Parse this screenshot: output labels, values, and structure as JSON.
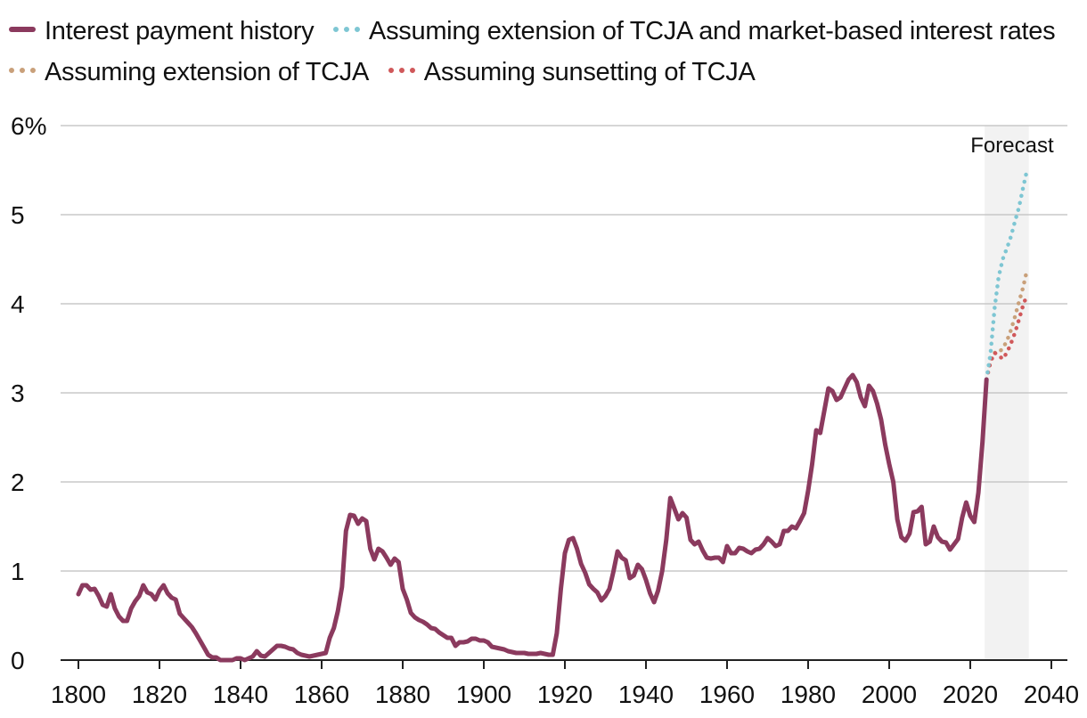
{
  "legend": {
    "history": "Interest payment history",
    "market": "Assuming extension of TCJA and market-based interest rates",
    "extension": "Assuming extension of TCJA",
    "sunset": "Assuming sunsetting of TCJA"
  },
  "colors": {
    "history": "#8b3a5e",
    "market": "#7ec6d3",
    "extension": "#c9a07a",
    "sunset": "#d0585a",
    "grid": "#c8c8c8",
    "forecast_band": "#f2f2f2"
  },
  "chart_data": {
    "type": "line",
    "title": "",
    "xlabel": "",
    "ylabel": "",
    "xlim": [
      1795,
      2043
    ],
    "ylim": [
      0,
      6
    ],
    "x_ticks": [
      1800,
      1820,
      1840,
      1860,
      1880,
      1900,
      1920,
      1940,
      1960,
      1980,
      2000,
      2020,
      2040
    ],
    "x_tick_labels": [
      "1800",
      "1820",
      "1840",
      "1860",
      "1880",
      "1900",
      "1920",
      "1940",
      "1960",
      "1980",
      "2000",
      "2020",
      "2040"
    ],
    "y_ticks": [
      0,
      1,
      2,
      3,
      4,
      5,
      6
    ],
    "y_tick_labels": [
      "0",
      "1",
      "2",
      "3",
      "4",
      "5",
      "6%"
    ],
    "forecast_range": [
      2024,
      2034
    ],
    "forecast_label": "Forecast",
    "series": [
      {
        "name": "Interest payment history",
        "style": "solid",
        "x": [
          1800,
          1801,
          1802,
          1803,
          1804,
          1805,
          1806,
          1807,
          1808,
          1809,
          1810,
          1811,
          1812,
          1813,
          1814,
          1815,
          1816,
          1817,
          1818,
          1819,
          1820,
          1821,
          1822,
          1823,
          1824,
          1825,
          1826,
          1827,
          1828,
          1829,
          1830,
          1831,
          1832,
          1833,
          1834,
          1835,
          1836,
          1837,
          1838,
          1839,
          1840,
          1841,
          1842,
          1843,
          1844,
          1845,
          1846,
          1847,
          1848,
          1849,
          1850,
          1851,
          1852,
          1853,
          1854,
          1855,
          1856,
          1857,
          1858,
          1859,
          1860,
          1861,
          1862,
          1863,
          1864,
          1865,
          1866,
          1867,
          1868,
          1869,
          1870,
          1871,
          1872,
          1873,
          1874,
          1875,
          1876,
          1877,
          1878,
          1879,
          1880,
          1881,
          1882,
          1883,
          1884,
          1885,
          1886,
          1887,
          1888,
          1889,
          1890,
          1891,
          1892,
          1893,
          1894,
          1895,
          1896,
          1897,
          1898,
          1899,
          1900,
          1901,
          1902,
          1903,
          1904,
          1905,
          1906,
          1907,
          1908,
          1909,
          1910,
          1911,
          1912,
          1913,
          1914,
          1915,
          1916,
          1917,
          1918,
          1919,
          1920,
          1921,
          1922,
          1923,
          1924,
          1925,
          1926,
          1927,
          1928,
          1929,
          1930,
          1931,
          1932,
          1933,
          1934,
          1935,
          1936,
          1937,
          1938,
          1939,
          1940,
          1941,
          1942,
          1943,
          1944,
          1945,
          1946,
          1947,
          1948,
          1949,
          1950,
          1951,
          1952,
          1953,
          1954,
          1955,
          1956,
          1957,
          1958,
          1959,
          1960,
          1961,
          1962,
          1963,
          1964,
          1965,
          1966,
          1967,
          1968,
          1969,
          1970,
          1971,
          1972,
          1973,
          1974,
          1975,
          1976,
          1977,
          1978,
          1979,
          1980,
          1981,
          1982,
          1983,
          1984,
          1985,
          1986,
          1987,
          1988,
          1989,
          1990,
          1991,
          1992,
          1993,
          1994,
          1995,
          1996,
          1997,
          1998,
          1999,
          2000,
          2001,
          2002,
          2003,
          2004,
          2005,
          2006,
          2007,
          2008,
          2009,
          2010,
          2011,
          2012,
          2013,
          2014,
          2015,
          2016,
          2017,
          2018,
          2019,
          2020,
          2021,
          2022,
          2023,
          2024
        ],
        "values": [
          0.74,
          0.84,
          0.84,
          0.79,
          0.8,
          0.72,
          0.62,
          0.6,
          0.74,
          0.58,
          0.49,
          0.44,
          0.44,
          0.58,
          0.66,
          0.72,
          0.84,
          0.76,
          0.74,
          0.68,
          0.78,
          0.84,
          0.75,
          0.7,
          0.68,
          0.52,
          0.47,
          0.42,
          0.37,
          0.3,
          0.22,
          0.14,
          0.06,
          0.03,
          0.03,
          0.0,
          0.0,
          0.0,
          0.0,
          0.02,
          0.02,
          0.0,
          0.02,
          0.04,
          0.1,
          0.05,
          0.04,
          0.08,
          0.12,
          0.16,
          0.16,
          0.15,
          0.13,
          0.12,
          0.08,
          0.06,
          0.05,
          0.04,
          0.05,
          0.06,
          0.07,
          0.08,
          0.25,
          0.36,
          0.55,
          0.82,
          1.45,
          1.63,
          1.62,
          1.53,
          1.59,
          1.56,
          1.25,
          1.13,
          1.25,
          1.22,
          1.15,
          1.07,
          1.14,
          1.1,
          0.8,
          0.68,
          0.53,
          0.48,
          0.45,
          0.43,
          0.4,
          0.36,
          0.35,
          0.31,
          0.28,
          0.25,
          0.25,
          0.16,
          0.2,
          0.2,
          0.21,
          0.24,
          0.24,
          0.22,
          0.22,
          0.2,
          0.15,
          0.14,
          0.13,
          0.12,
          0.1,
          0.09,
          0.08,
          0.08,
          0.08,
          0.07,
          0.07,
          0.07,
          0.08,
          0.07,
          0.06,
          0.06,
          0.3,
          0.8,
          1.2,
          1.35,
          1.37,
          1.25,
          1.08,
          0.98,
          0.85,
          0.8,
          0.76,
          0.67,
          0.72,
          0.8,
          1.0,
          1.22,
          1.15,
          1.12,
          0.92,
          0.95,
          1.07,
          1.02,
          0.9,
          0.75,
          0.65,
          0.78,
          1.0,
          1.35,
          1.82,
          1.7,
          1.58,
          1.65,
          1.6,
          1.35,
          1.3,
          1.33,
          1.23,
          1.15,
          1.14,
          1.15,
          1.15,
          1.1,
          1.28,
          1.2,
          1.2,
          1.26,
          1.25,
          1.22,
          1.2,
          1.24,
          1.25,
          1.3,
          1.37,
          1.33,
          1.28,
          1.3,
          1.45,
          1.45,
          1.5,
          1.48,
          1.56,
          1.65,
          1.9,
          2.2,
          2.58,
          2.55,
          2.8,
          3.05,
          3.02,
          2.92,
          2.95,
          3.05,
          3.15,
          3.2,
          3.12,
          2.95,
          2.85,
          3.08,
          3.02,
          2.88,
          2.7,
          2.42,
          2.2,
          2.0,
          1.58,
          1.38,
          1.34,
          1.42,
          1.66,
          1.67,
          1.72,
          1.3,
          1.33,
          1.5,
          1.38,
          1.33,
          1.32,
          1.24,
          1.3,
          1.36,
          1.6,
          1.77,
          1.62,
          1.55,
          1.88,
          2.45,
          3.15
        ]
      },
      {
        "name": "Assuming extension of TCJA and market-based interest rates",
        "style": "dotted",
        "x": [
          2024,
          2025,
          2026,
          2027,
          2028,
          2029,
          2030,
          2031,
          2032,
          2033,
          2034
        ],
        "values": [
          3.15,
          3.45,
          3.95,
          4.3,
          4.5,
          4.62,
          4.75,
          4.92,
          5.08,
          5.3,
          5.5
        ]
      },
      {
        "name": "Assuming extension of TCJA",
        "style": "dotted",
        "x": [
          2024,
          2025,
          2026,
          2027,
          2028,
          2029,
          2030,
          2031,
          2032,
          2033,
          2034
        ],
        "values": [
          3.15,
          3.4,
          3.45,
          3.45,
          3.5,
          3.58,
          3.7,
          3.85,
          4.02,
          4.18,
          4.38
        ]
      },
      {
        "name": "Assuming sunsetting of TCJA",
        "style": "dotted",
        "x": [
          2024,
          2025,
          2026,
          2027,
          2028,
          2029,
          2030,
          2031,
          2032,
          2033,
          2034
        ],
        "values": [
          3.15,
          3.35,
          3.45,
          3.42,
          3.38,
          3.45,
          3.55,
          3.67,
          3.82,
          3.98,
          4.1
        ]
      }
    ]
  }
}
